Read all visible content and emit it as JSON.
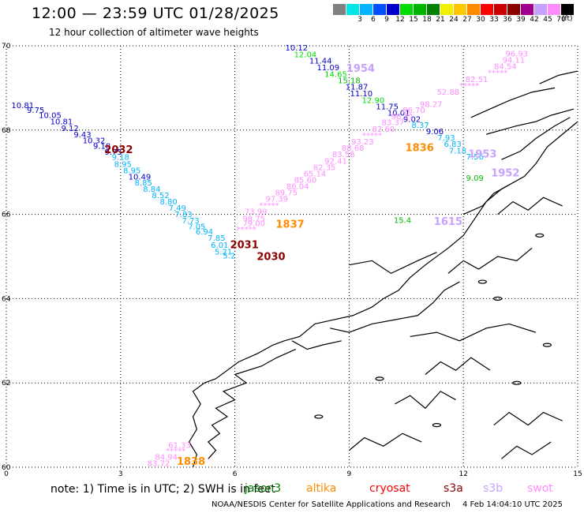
{
  "header": {
    "title": "12:00 — 23:59 UTC 01/28/2025",
    "subtitle": "12 hour collection of altimeter wave heights"
  },
  "scale": {
    "unit": "(ft)",
    "bins": [
      {
        "label": "",
        "color": "#7f7f7f"
      },
      {
        "label": "3",
        "color": "#00e6e6"
      },
      {
        "label": "6",
        "color": "#00b4ff"
      },
      {
        "label": "9",
        "color": "#0050ff"
      },
      {
        "label": "12",
        "color": "#0000c8"
      },
      {
        "label": "15",
        "color": "#00dc00"
      },
      {
        "label": "18",
        "color": "#00b400"
      },
      {
        "label": "21",
        "color": "#008200"
      },
      {
        "label": "24",
        "color": "#f0f000"
      },
      {
        "label": "27",
        "color": "#ffc800"
      },
      {
        "label": "30",
        "color": "#ff8c00"
      },
      {
        "label": "33",
        "color": "#ff0000"
      },
      {
        "label": "36",
        "color": "#c80000"
      },
      {
        "label": "39",
        "color": "#8c0000"
      },
      {
        "label": "42",
        "color": "#a0008c"
      },
      {
        "label": "45",
        "color": "#c8a0ff"
      },
      {
        "label": "70",
        "color": "#ff8cff"
      },
      {
        "label": "",
        "color": "#000000"
      }
    ]
  },
  "map": {
    "x_ticks": [
      "0",
      "3",
      "6",
      "9",
      "12",
      "15"
    ],
    "y_ticks": [
      "70",
      "68",
      "66",
      "64",
      "62",
      "60"
    ],
    "track_west": [
      {
        "lon": 0.43,
        "lat": 68.52,
        "text": "10.81",
        "color": "#0000c8"
      },
      {
        "lon": 0.77,
        "lat": 68.41,
        "text": "9.75",
        "color": "#0000c8"
      },
      {
        "lon": 1.15,
        "lat": 68.29,
        "text": "10.05",
        "color": "#0000c8"
      },
      {
        "lon": 1.45,
        "lat": 68.14,
        "text": "10.81",
        "color": "#0000c8"
      },
      {
        "lon": 1.67,
        "lat": 67.98,
        "text": "9.12",
        "color": "#0000c8"
      },
      {
        "lon": 2.0,
        "lat": 67.83,
        "text": "9.43",
        "color": "#0000c8"
      },
      {
        "lon": 2.3,
        "lat": 67.69,
        "text": "10.32",
        "color": "#0000c8"
      },
      {
        "lon": 2.51,
        "lat": 67.56,
        "text": "9.18",
        "color": "#0000c8"
      },
      {
        "lon": 2.81,
        "lat": 67.42,
        "text": "9.75",
        "color": "#0000c8"
      },
      {
        "lon": 3.0,
        "lat": 67.29,
        "text": "9.18",
        "color": "#00b4ff"
      },
      {
        "lon": 3.06,
        "lat": 67.13,
        "text": "8.95",
        "color": "#00b4ff"
      },
      {
        "lon": 3.3,
        "lat": 66.98,
        "text": "8.95",
        "color": "#00b4ff"
      },
      {
        "lon": 3.5,
        "lat": 66.83,
        "text": "10.49",
        "color": "#0000c8"
      },
      {
        "lon": 3.6,
        "lat": 66.69,
        "text": "8.85",
        "color": "#00b4ff"
      },
      {
        "lon": 3.82,
        "lat": 66.54,
        "text": "8.84",
        "color": "#00b4ff"
      },
      {
        "lon": 4.05,
        "lat": 66.39,
        "text": "8.52",
        "color": "#00b4ff"
      },
      {
        "lon": 4.26,
        "lat": 66.24,
        "text": "8.80",
        "color": "#00b4ff"
      },
      {
        "lon": 4.49,
        "lat": 66.09,
        "text": "7.49",
        "color": "#00b4ff"
      },
      {
        "lon": 4.65,
        "lat": 65.94,
        "text": "7.83",
        "color": "#00b4ff"
      },
      {
        "lon": 4.84,
        "lat": 65.79,
        "text": "7.73",
        "color": "#00b4ff"
      },
      {
        "lon": 5.0,
        "lat": 65.65,
        "text": "7.05",
        "color": "#00b4ff"
      },
      {
        "lon": 5.2,
        "lat": 65.52,
        "text": "6.94",
        "color": "#00b4ff"
      },
      {
        "lon": 5.52,
        "lat": 65.37,
        "text": "7.85",
        "color": "#00b4ff"
      },
      {
        "lon": 5.6,
        "lat": 65.21,
        "text": "6.01",
        "color": "#00b4ff"
      },
      {
        "lon": 5.7,
        "lat": 65.05,
        "text": "5.21",
        "color": "#00b4ff"
      },
      {
        "lon": 5.85,
        "lat": 64.95,
        "text": "5.2",
        "color": "#00b4ff"
      }
    ],
    "track_central": [
      {
        "lon": 7.62,
        "lat": 69.89,
        "text": "10.12",
        "color": "#0000c8"
      },
      {
        "lon": 7.85,
        "lat": 69.73,
        "text": "12.04",
        "color": "#00dc00"
      },
      {
        "lon": 8.25,
        "lat": 69.58,
        "text": "11.44",
        "color": "#0000c8"
      },
      {
        "lon": 8.45,
        "lat": 69.42,
        "text": "11.09",
        "color": "#0000c8"
      },
      {
        "lon": 8.65,
        "lat": 69.26,
        "text": "14.65",
        "color": "#00dc00"
      },
      {
        "lon": 9.0,
        "lat": 69.11,
        "text": "15.18",
        "color": "#00b400"
      },
      {
        "lon": 9.2,
        "lat": 68.96,
        "text": "11.87",
        "color": "#0000c8"
      },
      {
        "lon": 9.32,
        "lat": 68.8,
        "text": "11.10",
        "color": "#0000c8"
      },
      {
        "lon": 9.63,
        "lat": 68.64,
        "text": "12.90",
        "color": "#00dc00"
      },
      {
        "lon": 10.0,
        "lat": 68.49,
        "text": "11.75",
        "color": "#0000c8"
      },
      {
        "lon": 10.3,
        "lat": 68.34,
        "text": "10.01",
        "color": "#0000c8"
      },
      {
        "lon": 10.65,
        "lat": 68.19,
        "text": "9.02",
        "color": "#0000c8"
      },
      {
        "lon": 10.87,
        "lat": 68.05,
        "text": "8.37",
        "color": "#00b4ff"
      },
      {
        "lon": 11.25,
        "lat": 67.9,
        "text": "9.06",
        "color": "#0000c8"
      },
      {
        "lon": 11.55,
        "lat": 67.75,
        "text": "7.93",
        "color": "#00b4ff"
      },
      {
        "lon": 11.72,
        "lat": 67.6,
        "text": "6.83",
        "color": "#00b4ff"
      },
      {
        "lon": 11.85,
        "lat": 67.44,
        "text": "7.18",
        "color": "#00b4ff"
      }
    ],
    "track_east": [
      {
        "lon": 13.4,
        "lat": 69.75,
        "text": "96.93",
        "color": "#ff8cff"
      },
      {
        "lon": 13.32,
        "lat": 69.6,
        "text": "94.11",
        "color": "#ff8cff"
      },
      {
        "lon": 13.1,
        "lat": 69.45,
        "text": "84.54",
        "color": "#ff8cff"
      },
      {
        "lon": 12.9,
        "lat": 69.3,
        "text": "*****",
        "color": "#ff8cff"
      },
      {
        "lon": 12.35,
        "lat": 69.14,
        "text": "82.51",
        "color": "#ff8cff"
      },
      {
        "lon": 12.15,
        "lat": 68.99,
        "text": "*****",
        "color": "#ff8cff"
      },
      {
        "lon": 11.6,
        "lat": 68.84,
        "text": "52.88",
        "color": "#ff8cff"
      },
      {
        "lon": 11.15,
        "lat": 68.55,
        "text": "98.27",
        "color": "#ff8cff"
      },
      {
        "lon": 10.7,
        "lat": 68.41,
        "text": "86.70",
        "color": "#ff8cff"
      },
      {
        "lon": 10.4,
        "lat": 68.26,
        "text": "96.21",
        "color": "#ff8cff"
      },
      {
        "lon": 10.15,
        "lat": 68.12,
        "text": "83.37",
        "color": "#ff8cff"
      },
      {
        "lon": 9.9,
        "lat": 67.96,
        "text": "82.60",
        "color": "#ff8cff"
      },
      {
        "lon": 9.6,
        "lat": 67.81,
        "text": "*****",
        "color": "#ff8cff"
      },
      {
        "lon": 9.35,
        "lat": 67.66,
        "text": "93.23",
        "color": "#ff8cff"
      },
      {
        "lon": 9.1,
        "lat": 67.51,
        "text": "88.68",
        "color": "#ff8cff"
      },
      {
        "lon": 8.85,
        "lat": 67.36,
        "text": "83.58",
        "color": "#ff8cff"
      },
      {
        "lon": 8.65,
        "lat": 67.2,
        "text": "92.41",
        "color": "#ff8cff"
      },
      {
        "lon": 8.35,
        "lat": 67.05,
        "text": "82.35",
        "color": "#ff8cff"
      },
      {
        "lon": 8.1,
        "lat": 66.9,
        "text": "65.14",
        "color": "#ff8cff"
      },
      {
        "lon": 7.85,
        "lat": 66.75,
        "text": "85.60",
        "color": "#ff8cff"
      },
      {
        "lon": 7.65,
        "lat": 66.6,
        "text": "86.04",
        "color": "#ff8cff"
      },
      {
        "lon": 7.35,
        "lat": 66.45,
        "text": "89.75",
        "color": "#ff8cff"
      },
      {
        "lon": 7.1,
        "lat": 66.3,
        "text": "97.39",
        "color": "#ff8cff"
      },
      {
        "lon": 6.9,
        "lat": 66.15,
        "text": "*****",
        "color": "#ff8cff"
      },
      {
        "lon": 6.55,
        "lat": 66.0,
        "text": "73.99",
        "color": "#ff8cff"
      },
      {
        "lon": 6.5,
        "lat": 65.83,
        "text": "98.75",
        "color": "#ff8cff"
      },
      {
        "lon": 6.5,
        "lat": 65.72,
        "text": "79.00",
        "color": "#ff8cff"
      },
      {
        "lon": 6.3,
        "lat": 65.58,
        "text": "*****",
        "color": "#ff8cff"
      }
    ],
    "track_south": [
      {
        "lon": 4.55,
        "lat": 60.46,
        "text": "61.33",
        "color": "#ff8cff"
      },
      {
        "lon": 4.45,
        "lat": 60.33,
        "text": "*****",
        "color": "#ff8cff"
      },
      {
        "lon": 4.2,
        "lat": 60.18,
        "text": "84.94",
        "color": "#ff8cff"
      },
      {
        "lon": 4.0,
        "lat": 60.03,
        "text": "83.72",
        "color": "#ff8cff"
      }
    ],
    "extra_labels": [
      {
        "lon": 12.3,
        "lat": 67.3,
        "text": "7.56",
        "color": "#00b4ff"
      },
      {
        "lon": 12.3,
        "lat": 66.8,
        "text": "9.09",
        "color": "#00b400"
      },
      {
        "lon": 10.4,
        "lat": 65.8,
        "text": "15.4",
        "color": "#00b400"
      }
    ],
    "time_labels": [
      {
        "lon": 2.95,
        "lat": 67.45,
        "text": "2032",
        "color": "#8c0000"
      },
      {
        "lon": 9.3,
        "lat": 69.38,
        "text": "1954",
        "color": "#c8a0ff"
      },
      {
        "lon": 10.85,
        "lat": 67.5,
        "text": "1836",
        "color": "#ff8c00"
      },
      {
        "lon": 12.5,
        "lat": 67.35,
        "text": "1953",
        "color": "#c8a0ff"
      },
      {
        "lon": 13.1,
        "lat": 66.9,
        "text": "1952",
        "color": "#c8a0ff"
      },
      {
        "lon": 7.45,
        "lat": 65.68,
        "text": "1837",
        "color": "#ff8c00"
      },
      {
        "lon": 6.25,
        "lat": 65.2,
        "text": "2031",
        "color": "#8c0000"
      },
      {
        "lon": 6.95,
        "lat": 64.92,
        "text": "2030",
        "color": "#8c0000"
      },
      {
        "lon": 11.6,
        "lat": 65.75,
        "text": "1615",
        "color": "#c8a0ff"
      },
      {
        "lon": 4.85,
        "lat": 60.06,
        "text": "1838",
        "color": "#ff8c00"
      }
    ]
  },
  "footer": {
    "note": "note:  1) Time is in UTC;  2) SWH is in feet",
    "satellites": [
      {
        "name": "jason3",
        "color": "#008200"
      },
      {
        "name": "altika",
        "color": "#ff8c00"
      },
      {
        "name": "cryosat",
        "color": "#ff0000"
      },
      {
        "name": "s3a",
        "color": "#8c0000"
      },
      {
        "name": "s3b",
        "color": "#c8a0ff"
      },
      {
        "name": "swot",
        "color": "#ff8cff"
      }
    ],
    "credit": "NOAA/NESDIS Center for Satellite Applications and Research",
    "timestamp": "4 Feb 14:04:10 UTC 2025"
  }
}
